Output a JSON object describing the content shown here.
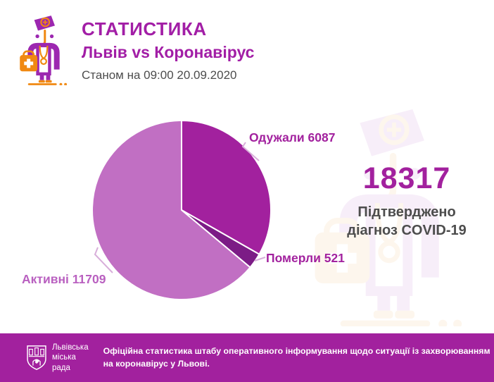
{
  "header": {
    "title": "СТАТИСТИКА",
    "subtitle": "Львів vs Коронавірус",
    "as_of": "Станом на 09:00 20.09.2020"
  },
  "chart_data": {
    "type": "pie",
    "title": "Львів vs Коронавірус",
    "as_of": "Станом на 09:00 20.09.2020",
    "total": 18317,
    "start_angle_deg": 0,
    "direction": "clockwise",
    "legend_position": "callout-labels",
    "slices": [
      {
        "key": "recovered",
        "label": "Одужали",
        "value": 6087,
        "display": "Одужали 6087",
        "color": "#a2219e"
      },
      {
        "key": "died",
        "label": "Померли",
        "value": 521,
        "display": "Померли 521",
        "color": "#7c1c86"
      },
      {
        "key": "active",
        "label": "Активні",
        "value": 11709,
        "display": "Активні 11709",
        "color": "#c16fc3"
      }
    ]
  },
  "summary": {
    "total": "18317",
    "caption_line1": "Підтверджено",
    "caption_line2": "діагноз COVID-19"
  },
  "footer": {
    "org_lines": [
      "Львівська",
      "міська",
      "рада"
    ],
    "note": "Офіційна статистика штабу оперативного інформування щодо ситуації із захворюванням на коронавірус у Львові."
  },
  "icons": {
    "doctor": "doctor-with-medical-bag-icon",
    "crest": "lviv-city-coat-of-arms-icon"
  },
  "colors": {
    "accent_magenta": "#a2219e",
    "header_text": "#a21ea6",
    "slice_recovered": "#a2219e",
    "slice_died": "#7c1c86",
    "slice_active": "#c16fc3",
    "active_label_text": "#b960c0",
    "text_dark": "#4d4d4d",
    "footer_bg": "#a2219e",
    "icon_orange": "#f08912",
    "icon_purple": "#9c27b0",
    "leader_line": "#d8aeda"
  }
}
